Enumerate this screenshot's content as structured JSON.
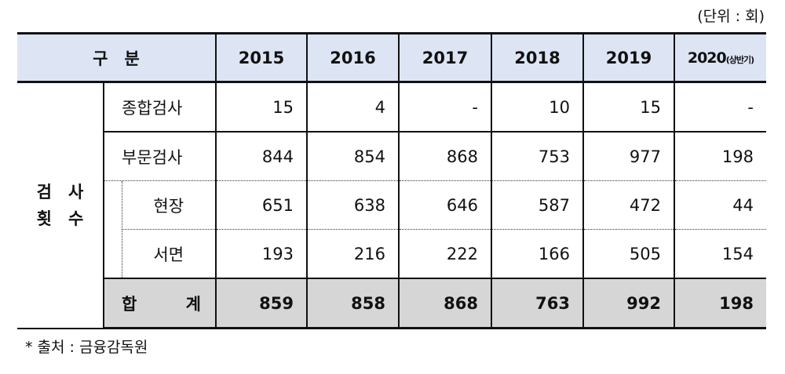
{
  "unit_note": "(단위 : 회)",
  "header": {
    "category": "구　분",
    "years": [
      "2015",
      "2016",
      "2017",
      "2018",
      "2019"
    ],
    "last_year": "2020",
    "last_year_note": "(상반기)"
  },
  "group_label": {
    "line1": "검　사",
    "line2": "횟　수"
  },
  "rows": [
    {
      "label": "종합검사",
      "values": [
        "15",
        "4",
        "-",
        "10",
        "15",
        "-"
      ]
    },
    {
      "label": "부문검사",
      "values": [
        "844",
        "854",
        "868",
        "753",
        "977",
        "198"
      ]
    },
    {
      "label": "현장",
      "values": [
        "651",
        "638",
        "646",
        "587",
        "472",
        "44"
      ]
    },
    {
      "label": "서면",
      "values": [
        "193",
        "216",
        "222",
        "166",
        "505",
        "154"
      ]
    }
  ],
  "total": {
    "label_left": "합",
    "label_right": "계",
    "values": [
      "859",
      "858",
      "868",
      "763",
      "992",
      "198"
    ]
  },
  "source": "* 출처 : 금융감독원",
  "colors": {
    "header_bg": "#dde5f5",
    "total_bg": "#d6d6d6"
  }
}
